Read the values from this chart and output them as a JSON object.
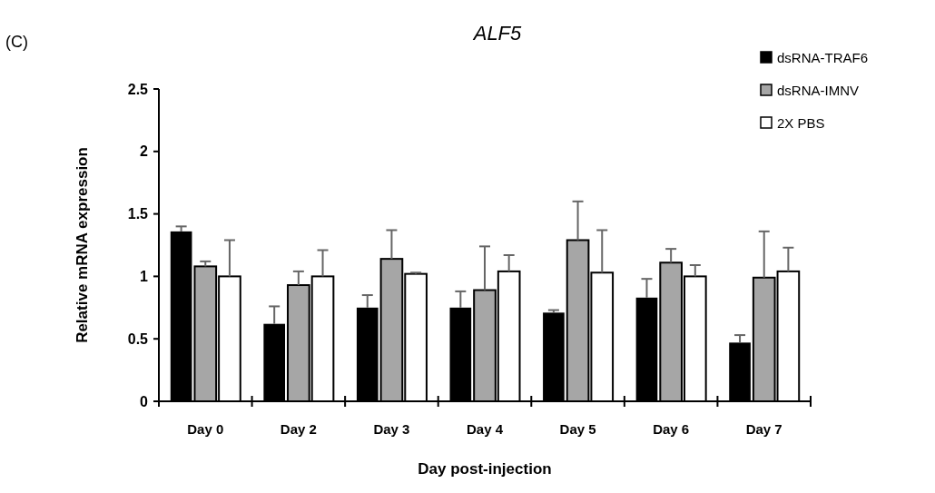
{
  "chart_data": {
    "type": "bar",
    "title": "ALF5",
    "annotations": [
      "(C)"
    ],
    "xlabel": "Day post-injection",
    "ylabel": "Relative mRNA expression",
    "categories": [
      "Day 0",
      "Day 2",
      "Day 3",
      "Day 4",
      "Day 5",
      "Day 6",
      "Day 7"
    ],
    "series": [
      {
        "name": "dsRNA-TRAF6",
        "color": "#000000",
        "values": [
          1.36,
          0.62,
          0.75,
          0.75,
          0.71,
          0.83,
          0.47
        ],
        "errors": [
          [
            1.36,
            1.4
          ],
          [
            0.62,
            0.76
          ],
          [
            0.75,
            0.85
          ],
          [
            0.75,
            0.88
          ],
          [
            0.71,
            0.73
          ],
          [
            0.83,
            0.98
          ],
          [
            0.47,
            0.53
          ]
        ]
      },
      {
        "name": "dsRNA-IMNV",
        "color": "#a6a6a6",
        "values": [
          1.08,
          0.93,
          1.14,
          0.89,
          1.29,
          1.11,
          0.99
        ],
        "errors": [
          [
            1.08,
            1.12
          ],
          [
            0.93,
            1.04
          ],
          [
            1.14,
            1.37
          ],
          [
            0.89,
            1.24
          ],
          [
            1.29,
            1.6
          ],
          [
            1.11,
            1.22
          ],
          [
            0.99,
            1.36
          ]
        ]
      },
      {
        "name": "2X PBS",
        "color": "#ffffff",
        "values": [
          1.0,
          1.0,
          1.02,
          1.04,
          1.03,
          1.0,
          1.04
        ],
        "errors": [
          [
            1.0,
            1.29
          ],
          [
            1.0,
            1.21
          ],
          [
            1.02,
            1.03
          ],
          [
            1.04,
            1.17
          ],
          [
            1.03,
            1.37
          ],
          [
            1.0,
            1.09
          ],
          [
            1.04,
            1.23
          ]
        ]
      }
    ],
    "ylim": [
      0,
      2.5
    ],
    "yticks": [
      0,
      0.5,
      1,
      1.5,
      2,
      2.5
    ],
    "grid": false,
    "legend": "top right"
  }
}
